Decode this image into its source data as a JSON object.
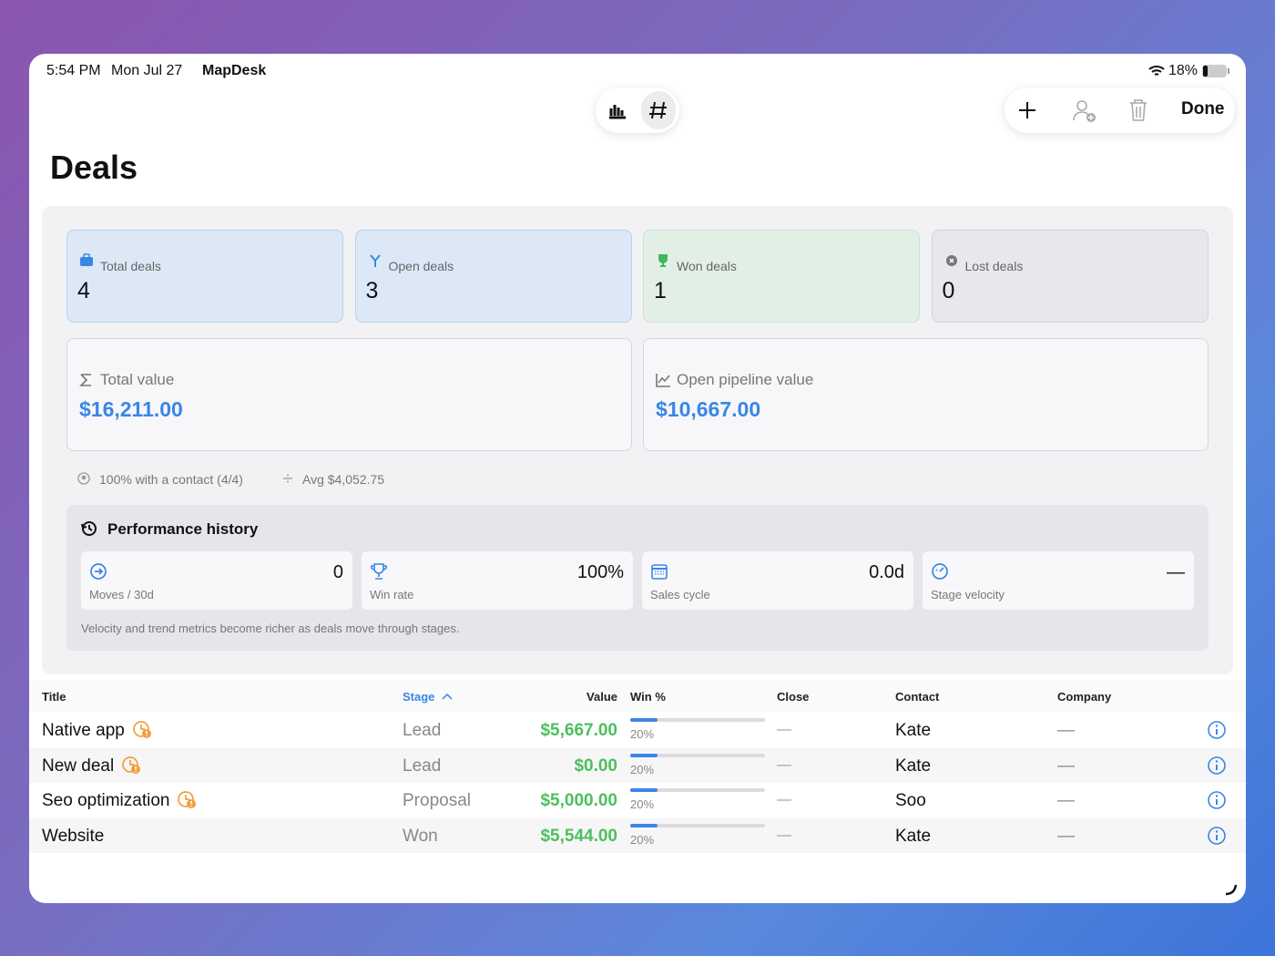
{
  "status_bar": {
    "time": "5:54 PM",
    "date": "Mon Jul 27",
    "app": "MapDesk",
    "battery": "18%"
  },
  "toolbar": {
    "done": "Done"
  },
  "header": {
    "title": "Deals"
  },
  "stats": [
    {
      "label": "Total deals",
      "value": 4
    },
    {
      "label": "Open deals",
      "value": 3
    },
    {
      "label": "Won deals",
      "value": 1
    },
    {
      "label": "Lost deals",
      "value": 0
    }
  ],
  "totals": [
    {
      "label": "Total value",
      "value": "$16,211.00"
    },
    {
      "label": "Open pipeline value",
      "value": "$10,667.00"
    }
  ],
  "summary": {
    "contact": "100% with a contact (4/4)",
    "average": "Avg $4,052.75"
  },
  "performance": {
    "title": "Performance history",
    "metrics": [
      {
        "label": "Moves / 30d",
        "value": "0"
      },
      {
        "label": "Win rate",
        "value": "100%"
      },
      {
        "label": "Sales cycle",
        "value": "0.0d"
      },
      {
        "label": "Stage velocity",
        "value": "—"
      }
    ],
    "note": "Velocity and trend metrics become richer as deals move through stages."
  },
  "table": {
    "columns": [
      "Title",
      "Stage",
      "Value",
      "Win %",
      "Close",
      "Contact",
      "Company"
    ],
    "rows": [
      {
        "title": "Native app",
        "stage": "Lead",
        "value": "$5,667.00",
        "win": {
          "value": 20,
          "label": "20%"
        },
        "close": "—",
        "contact": "Kate",
        "company": "—"
      },
      {
        "title": "New deal",
        "stage": "Lead",
        "value": "$0.00",
        "win": {
          "value": 20,
          "label": "20%"
        },
        "close": "—",
        "contact": "Kate",
        "company": "—"
      },
      {
        "title": "Seo optimization",
        "stage": "Proposal",
        "value": "$5,000.00",
        "win": {
          "value": 20,
          "label": "20%"
        },
        "close": "—",
        "contact": "Soo",
        "company": "—"
      },
      {
        "title": "Website",
        "stage": "Won",
        "value": "$5,544.00",
        "win": {
          "value": 20,
          "label": "20%"
        },
        "close": "—",
        "contact": "Kate",
        "company": "—"
      }
    ]
  }
}
